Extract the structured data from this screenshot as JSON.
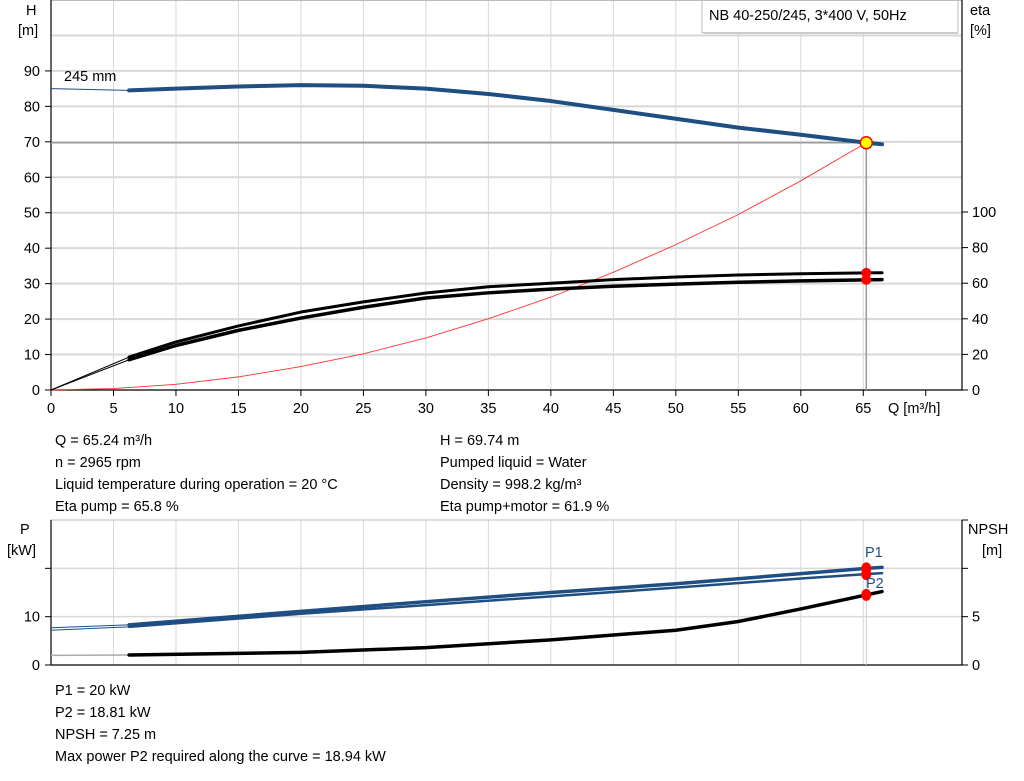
{
  "chart_data": [
    {
      "type": "line",
      "title": "NB 40-250/245, 3*400 V, 50Hz",
      "curve_label": "245 mm",
      "xlabel": "Q [m³/h]",
      "xlim": [
        0,
        72.9
      ],
      "xticks": [
        0,
        5,
        10,
        15,
        20,
        25,
        30,
        35,
        40,
        45,
        50,
        55,
        60,
        65
      ],
      "ylabel_left": [
        "H",
        "[m]"
      ],
      "ylim_left": [
        0,
        110
      ],
      "yticks_left": [
        0,
        10,
        20,
        30,
        40,
        50,
        60,
        70,
        80,
        90
      ],
      "ylabel_right": [
        "eta",
        "[%]"
      ],
      "ylim_right": [
        0,
        100
      ],
      "yticks_right": [
        0,
        20,
        40,
        60,
        80,
        100
      ],
      "grid": true,
      "min_flow": 6.25,
      "head_curve": {
        "color": "#1f4e82",
        "x": [
          0,
          6.25,
          10,
          15,
          20,
          25,
          30,
          35,
          40,
          45,
          50,
          55,
          60,
          65.24,
          66.5
        ],
        "y": [
          85,
          84.5,
          85,
          85.6,
          86,
          85.8,
          85,
          83.5,
          81.5,
          79,
          76.5,
          74,
          72,
          69.74,
          69.3
        ]
      },
      "system_curve": {
        "color": "#ff3030",
        "x": [
          0,
          5,
          10,
          15,
          20,
          25,
          30,
          35,
          40,
          45,
          50,
          55,
          60,
          65.24
        ],
        "y": [
          0,
          0.4,
          1.6,
          3.7,
          6.6,
          10.2,
          14.7,
          20.1,
          26.2,
          33.2,
          41,
          49.5,
          59,
          69.74
        ]
      },
      "eta_pump": {
        "color": "#000000",
        "x": [
          0,
          6.25,
          10,
          15,
          20,
          25,
          30,
          35,
          40,
          45,
          50,
          55,
          60,
          65.24,
          66.5
        ],
        "y": [
          0,
          18.5,
          27,
          36,
          43.8,
          49.5,
          54.5,
          58,
          60,
          62,
          63.5,
          64.6,
          65.3,
          65.8,
          65.9
        ]
      },
      "eta_pump_motor": {
        "color": "#000000",
        "x": [
          0,
          6.25,
          10,
          15,
          20,
          25,
          30,
          35,
          40,
          45,
          50,
          55,
          60,
          65.24,
          66.5
        ],
        "y": [
          0,
          17,
          25,
          33.5,
          40.4,
          46.5,
          51.7,
          54.6,
          56.7,
          58.3,
          59.5,
          60.5,
          61.3,
          61.9,
          62
        ]
      },
      "duty_point": {
        "Q": 65.24,
        "H": 69.74,
        "color": "#ffff00",
        "border": "#ff0000"
      }
    },
    {
      "type": "line",
      "xlim": [
        0,
        72.9
      ],
      "ylabel_left": [
        "P",
        "[kW]"
      ],
      "ylim_left": [
        0,
        30
      ],
      "yticks_left": [
        0,
        10
      ],
      "gridlines_left": [
        10,
        20
      ],
      "ylabel_right": [
        "NPSH",
        "[m]"
      ],
      "ylim_right": [
        0,
        15
      ],
      "yticks_right": [
        0,
        5
      ],
      "grid": true,
      "series": [
        {
          "name": "P1",
          "color": "#1f4e82",
          "axis": "left",
          "x": [
            0,
            6.25,
            20,
            30,
            40,
            50,
            60,
            65.24,
            66.5
          ],
          "y": [
            7.7,
            8.3,
            11.1,
            13.1,
            15,
            16.8,
            18.9,
            20,
            20.2
          ]
        },
        {
          "name": "P2",
          "color": "#1f4e82",
          "axis": "left",
          "x": [
            0,
            6.25,
            20,
            30,
            40,
            50,
            60,
            65.24,
            66.5
          ],
          "y": [
            7.2,
            7.9,
            10.6,
            12.4,
            14.2,
            16,
            17.9,
            18.81,
            19
          ]
        },
        {
          "color": "#000000",
          "axis": "right",
          "x": [
            0,
            6.25,
            20,
            30,
            40,
            50,
            55,
            60,
            65.24,
            66.5
          ],
          "y": [
            1,
            1.04,
            1.3,
            1.8,
            2.6,
            3.6,
            4.5,
            5.8,
            7.25,
            7.6
          ]
        }
      ],
      "markers": {
        "P1": 20,
        "P2": 18.81,
        "NPSH": 7.25,
        "Q": 65.24
      }
    }
  ],
  "info": {
    "left": [
      "Q = 65.24 m³/h",
      "n = 2965 rpm",
      "Liquid temperature during operation = 20 °C",
      "Eta pump = 65.8 %"
    ],
    "right": [
      "H = 69.74 m",
      "Pumped liquid = Water",
      "Density = 998.2 kg/m³",
      "Eta pump+motor = 61.9 %"
    ],
    "bottom": [
      "P1 = 20 kW",
      "P2 = 18.81 kW",
      "NPSH = 7.25 m",
      "Max power P2 required along the curve = 18.94 kW"
    ]
  },
  "colors": {
    "grid": "#d8d8d8",
    "head": "#1f4e82",
    "system": "#ff3030",
    "marker": "#ff0000"
  }
}
